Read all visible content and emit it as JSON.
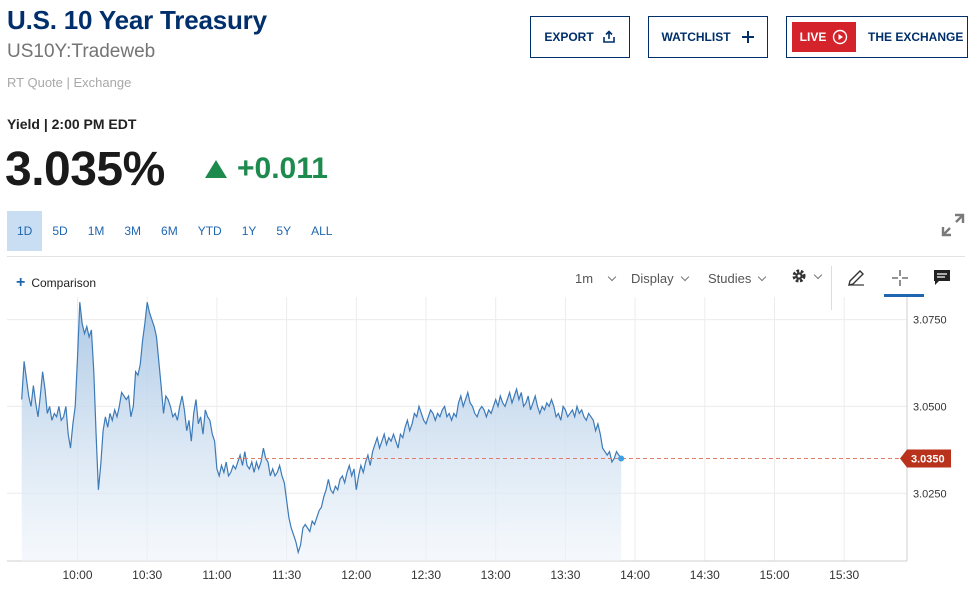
{
  "header": {
    "title": "U.S. 10 Year Treasury",
    "symbol": "US10Y:Tradeweb",
    "source": "RT Quote | Exchange"
  },
  "buttons": {
    "export": "EXPORT",
    "watchlist": "WATCHLIST",
    "live_badge": "LIVE",
    "exchange": "THE EXCHANGE"
  },
  "quote": {
    "label": "Yield | 2:00 PM EDT",
    "price": "3.035%",
    "change": "+0.011",
    "direction": "up"
  },
  "ranges": {
    "items": [
      "1D",
      "5D",
      "1M",
      "3M",
      "6M",
      "YTD",
      "1Y",
      "5Y",
      "ALL"
    ],
    "active": "1D"
  },
  "toolbar": {
    "comparison": "Comparison",
    "interval": "1m",
    "display": "Display",
    "studies": "Studies"
  },
  "colors": {
    "brand": "#002f6c",
    "accent": "#1f66b0",
    "up": "#1d8a4e",
    "live": "#d4232b",
    "line": "#3d7ab8",
    "price_marker": "#b8321c"
  },
  "chart_data": {
    "type": "area",
    "series_label": "",
    "x_ticks": [
      "10:00",
      "10:30",
      "11:00",
      "11:30",
      "12:00",
      "12:30",
      "13:00",
      "13:30",
      "14:00",
      "14:30",
      "15:00",
      "15:30"
    ],
    "y_ticks": [
      "3.0750",
      "3.0500",
      "3.0250"
    ],
    "y_tick_values": [
      3.075,
      3.05,
      3.025
    ],
    "ylim": [
      3.0055,
      3.0815
    ],
    "last_label": "3.0350",
    "last_value": 3.035,
    "grid": true,
    "points": [
      [
        "9:36",
        3.052
      ],
      [
        "9:37",
        3.063
      ],
      [
        "9:38",
        3.058
      ],
      [
        "9:39",
        3.053
      ],
      [
        "9:40",
        3.05
      ],
      [
        "9:41",
        3.056
      ],
      [
        "9:42",
        3.051
      ],
      [
        "9:43",
        3.047
      ],
      [
        "9:44",
        3.053
      ],
      [
        "9:45",
        3.06
      ],
      [
        "9:46",
        3.055
      ],
      [
        "9:47",
        3.048
      ],
      [
        "9:48",
        3.05
      ],
      [
        "9:49",
        3.046
      ],
      [
        "9:50",
        3.048
      ],
      [
        "9:51",
        3.047
      ],
      [
        "9:52",
        3.05
      ],
      [
        "9:53",
        3.046
      ],
      [
        "9:54",
        3.047
      ],
      [
        "9:55",
        3.05
      ],
      [
        "9:56",
        3.042
      ],
      [
        "9:57",
        3.038
      ],
      [
        "9:58",
        3.045
      ],
      [
        "9:59",
        3.05
      ],
      [
        "10:00",
        3.064
      ],
      [
        "10:01",
        3.08
      ],
      [
        "10:02",
        3.074
      ],
      [
        "10:03",
        3.071
      ],
      [
        "10:04",
        3.073
      ],
      [
        "10:05",
        3.07
      ],
      [
        "10:06",
        3.072
      ],
      [
        "10:07",
        3.06
      ],
      [
        "10:08",
        3.042
      ],
      [
        "10:09",
        3.026
      ],
      [
        "10:10",
        3.033
      ],
      [
        "10:11",
        3.043
      ],
      [
        "10:12",
        3.047
      ],
      [
        "10:13",
        3.044
      ],
      [
        "10:14",
        3.048
      ],
      [
        "10:15",
        3.046
      ],
      [
        "10:16",
        3.049
      ],
      [
        "10:17",
        3.047
      ],
      [
        "10:18",
        3.05
      ],
      [
        "10:19",
        3.054
      ],
      [
        "10:20",
        3.053
      ],
      [
        "10:21",
        3.052
      ],
      [
        "10:22",
        3.053
      ],
      [
        "10:23",
        3.047
      ],
      [
        "10:24",
        3.05
      ],
      [
        "10:25",
        3.06
      ],
      [
        "10:26",
        3.059
      ],
      [
        "10:27",
        3.062
      ],
      [
        "10:28",
        3.069
      ],
      [
        "10:29",
        3.074
      ],
      [
        "10:30",
        3.08
      ],
      [
        "10:31",
        3.077
      ],
      [
        "10:32",
        3.075
      ],
      [
        "10:33",
        3.073
      ],
      [
        "10:34",
        3.07
      ],
      [
        "10:35",
        3.063
      ],
      [
        "10:36",
        3.056
      ],
      [
        "10:37",
        3.048
      ],
      [
        "10:38",
        3.053
      ],
      [
        "10:39",
        3.052
      ],
      [
        "10:40",
        3.05
      ],
      [
        "10:41",
        3.047
      ],
      [
        "10:42",
        3.048
      ],
      [
        "10:43",
        3.046
      ],
      [
        "10:44",
        3.05
      ],
      [
        "10:45",
        3.053
      ],
      [
        "10:46",
        3.049
      ],
      [
        "10:47",
        3.043
      ],
      [
        "10:48",
        3.046
      ],
      [
        "10:49",
        3.04
      ],
      [
        "10:50",
        3.048
      ],
      [
        "10:51",
        3.052
      ],
      [
        "10:52",
        3.045
      ],
      [
        "10:53",
        3.047
      ],
      [
        "10:54",
        3.042
      ],
      [
        "10:55",
        3.049
      ],
      [
        "10:56",
        3.047
      ],
      [
        "10:57",
        3.046
      ],
      [
        "10:58",
        3.042
      ],
      [
        "10:59",
        3.04
      ],
      [
        "11:00",
        3.032
      ],
      [
        "11:01",
        3.03
      ],
      [
        "11:02",
        3.033
      ],
      [
        "11:03",
        3.031
      ],
      [
        "11:04",
        3.034
      ],
      [
        "11:05",
        3.03
      ],
      [
        "11:06",
        3.031
      ],
      [
        "11:07",
        3.033
      ],
      [
        "11:08",
        3.032
      ],
      [
        "11:09",
        3.034
      ],
      [
        "11:10",
        3.036
      ],
      [
        "11:11",
        3.033
      ],
      [
        "11:12",
        3.037
      ],
      [
        "11:13",
        3.033
      ],
      [
        "11:14",
        3.032
      ],
      [
        "11:15",
        3.034
      ],
      [
        "11:16",
        3.031
      ],
      [
        "11:17",
        3.034
      ],
      [
        "11:18",
        3.032
      ],
      [
        "11:19",
        3.034
      ],
      [
        "11:20",
        3.038
      ],
      [
        "11:21",
        3.035
      ],
      [
        "11:22",
        3.034
      ],
      [
        "11:23",
        3.03
      ],
      [
        "11:24",
        3.032
      ],
      [
        "11:25",
        3.03
      ],
      [
        "11:26",
        3.031
      ],
      [
        "11:27",
        3.033
      ],
      [
        "11:28",
        3.03
      ],
      [
        "11:29",
        3.028
      ],
      [
        "11:30",
        3.023
      ],
      [
        "11:31",
        3.018
      ],
      [
        "11:32",
        3.015
      ],
      [
        "11:33",
        3.013
      ],
      [
        "11:34",
        3.011
      ],
      [
        "11:35",
        3.008
      ],
      [
        "11:36",
        3.01
      ],
      [
        "11:37",
        3.015
      ],
      [
        "11:38",
        3.016
      ],
      [
        "11:39",
        3.015
      ],
      [
        "11:40",
        3.014
      ],
      [
        "11:41",
        3.017
      ],
      [
        "11:42",
        3.016
      ],
      [
        "11:43",
        3.018
      ],
      [
        "11:44",
        3.02
      ],
      [
        "11:45",
        3.021
      ],
      [
        "11:46",
        3.024
      ],
      [
        "11:47",
        3.026
      ],
      [
        "11:48",
        3.029
      ],
      [
        "11:49",
        3.026
      ],
      [
        "11:50",
        3.025
      ],
      [
        "11:51",
        3.027
      ],
      [
        "11:52",
        3.026
      ],
      [
        "11:53",
        3.029
      ],
      [
        "11:54",
        3.03
      ],
      [
        "11:55",
        3.028
      ],
      [
        "11:56",
        3.031
      ],
      [
        "11:57",
        3.033
      ],
      [
        "11:58",
        3.03
      ],
      [
        "11:59",
        3.032
      ],
      [
        "12:00",
        3.026
      ],
      [
        "12:01",
        3.03
      ],
      [
        "12:02",
        3.033
      ],
      [
        "12:03",
        3.031
      ],
      [
        "12:04",
        3.034
      ],
      [
        "12:05",
        3.036
      ],
      [
        "12:06",
        3.033
      ],
      [
        "12:07",
        3.037
      ],
      [
        "12:08",
        3.039
      ],
      [
        "12:09",
        3.041
      ],
      [
        "12:10",
        3.038
      ],
      [
        "12:11",
        3.04
      ],
      [
        "12:12",
        3.042
      ],
      [
        "12:13",
        3.039
      ],
      [
        "12:14",
        3.041
      ],
      [
        "12:15",
        3.04
      ],
      [
        "12:16",
        3.042
      ],
      [
        "12:17",
        3.04
      ],
      [
        "12:18",
        3.038
      ],
      [
        "12:19",
        3.042
      ],
      [
        "12:20",
        3.041
      ],
      [
        "12:21",
        3.044
      ],
      [
        "12:22",
        3.046
      ],
      [
        "12:23",
        3.043
      ],
      [
        "12:24",
        3.045
      ],
      [
        "12:25",
        3.048
      ],
      [
        "12:26",
        3.047
      ],
      [
        "12:27",
        3.05
      ],
      [
        "12:28",
        3.048
      ],
      [
        "12:29",
        3.046
      ],
      [
        "12:30",
        3.045
      ],
      [
        "12:31",
        3.047
      ],
      [
        "12:32",
        3.049
      ],
      [
        "12:33",
        3.048
      ],
      [
        "12:34",
        3.046
      ],
      [
        "12:35",
        3.048
      ],
      [
        "12:36",
        3.047
      ],
      [
        "12:37",
        3.049
      ],
      [
        "12:38",
        3.05
      ],
      [
        "12:39",
        3.047
      ],
      [
        "12:40",
        3.048
      ],
      [
        "12:41",
        3.046
      ],
      [
        "12:42",
        3.048
      ],
      [
        "12:43",
        3.047
      ],
      [
        "12:44",
        3.051
      ],
      [
        "12:45",
        3.053
      ],
      [
        "12:46",
        3.05
      ],
      [
        "12:47",
        3.052
      ],
      [
        "12:48",
        3.054
      ],
      [
        "12:49",
        3.051
      ],
      [
        "12:50",
        3.05
      ],
      [
        "12:51",
        3.048
      ],
      [
        "12:52",
        3.047
      ],
      [
        "12:53",
        3.049
      ],
      [
        "12:54",
        3.05
      ],
      [
        "12:55",
        3.049
      ],
      [
        "12:56",
        3.047
      ],
      [
        "12:57",
        3.049
      ],
      [
        "12:58",
        3.048
      ],
      [
        "12:59",
        3.05
      ],
      [
        "13:00",
        3.052
      ],
      [
        "13:01",
        3.05
      ],
      [
        "13:02",
        3.053
      ],
      [
        "13:03",
        3.051
      ],
      [
        "13:04",
        3.05
      ],
      [
        "13:05",
        3.052
      ],
      [
        "13:06",
        3.054
      ],
      [
        "13:07",
        3.051
      ],
      [
        "13:08",
        3.053
      ],
      [
        "13:09",
        3.055
      ],
      [
        "13:10",
        3.052
      ],
      [
        "13:11",
        3.054
      ],
      [
        "13:12",
        3.05
      ],
      [
        "13:13",
        3.051
      ],
      [
        "13:14",
        3.053
      ],
      [
        "13:15",
        3.049
      ],
      [
        "13:16",
        3.051
      ],
      [
        "13:17",
        3.053
      ],
      [
        "13:18",
        3.05
      ],
      [
        "13:19",
        3.048
      ],
      [
        "13:20",
        3.05
      ],
      [
        "13:21",
        3.049
      ],
      [
        "13:22",
        3.051
      ],
      [
        "13:23",
        3.05
      ],
      [
        "13:24",
        3.052
      ],
      [
        "13:25",
        3.05
      ],
      [
        "13:26",
        3.047
      ],
      [
        "13:27",
        3.048
      ],
      [
        "13:28",
        3.046
      ],
      [
        "13:29",
        3.05
      ],
      [
        "13:30",
        3.049
      ],
      [
        "13:31",
        3.047
      ],
      [
        "13:32",
        3.048
      ],
      [
        "13:33",
        3.049
      ],
      [
        "13:34",
        3.047
      ],
      [
        "13:35",
        3.05
      ],
      [
        "13:36",
        3.048
      ],
      [
        "13:37",
        3.049
      ],
      [
        "13:38",
        3.047
      ],
      [
        "13:39",
        3.046
      ],
      [
        "13:40",
        3.048
      ],
      [
        "13:41",
        3.047
      ],
      [
        "13:42",
        3.046
      ],
      [
        "13:43",
        3.043
      ],
      [
        "13:44",
        3.045
      ],
      [
        "13:45",
        3.042
      ],
      [
        "13:46",
        3.038
      ],
      [
        "13:47",
        3.037
      ],
      [
        "13:48",
        3.036
      ],
      [
        "13:49",
        3.037
      ],
      [
        "13:50",
        3.034
      ],
      [
        "13:51",
        3.035
      ],
      [
        "13:52",
        3.037
      ],
      [
        "13:53",
        3.036
      ],
      [
        "13:54",
        3.035
      ]
    ]
  }
}
